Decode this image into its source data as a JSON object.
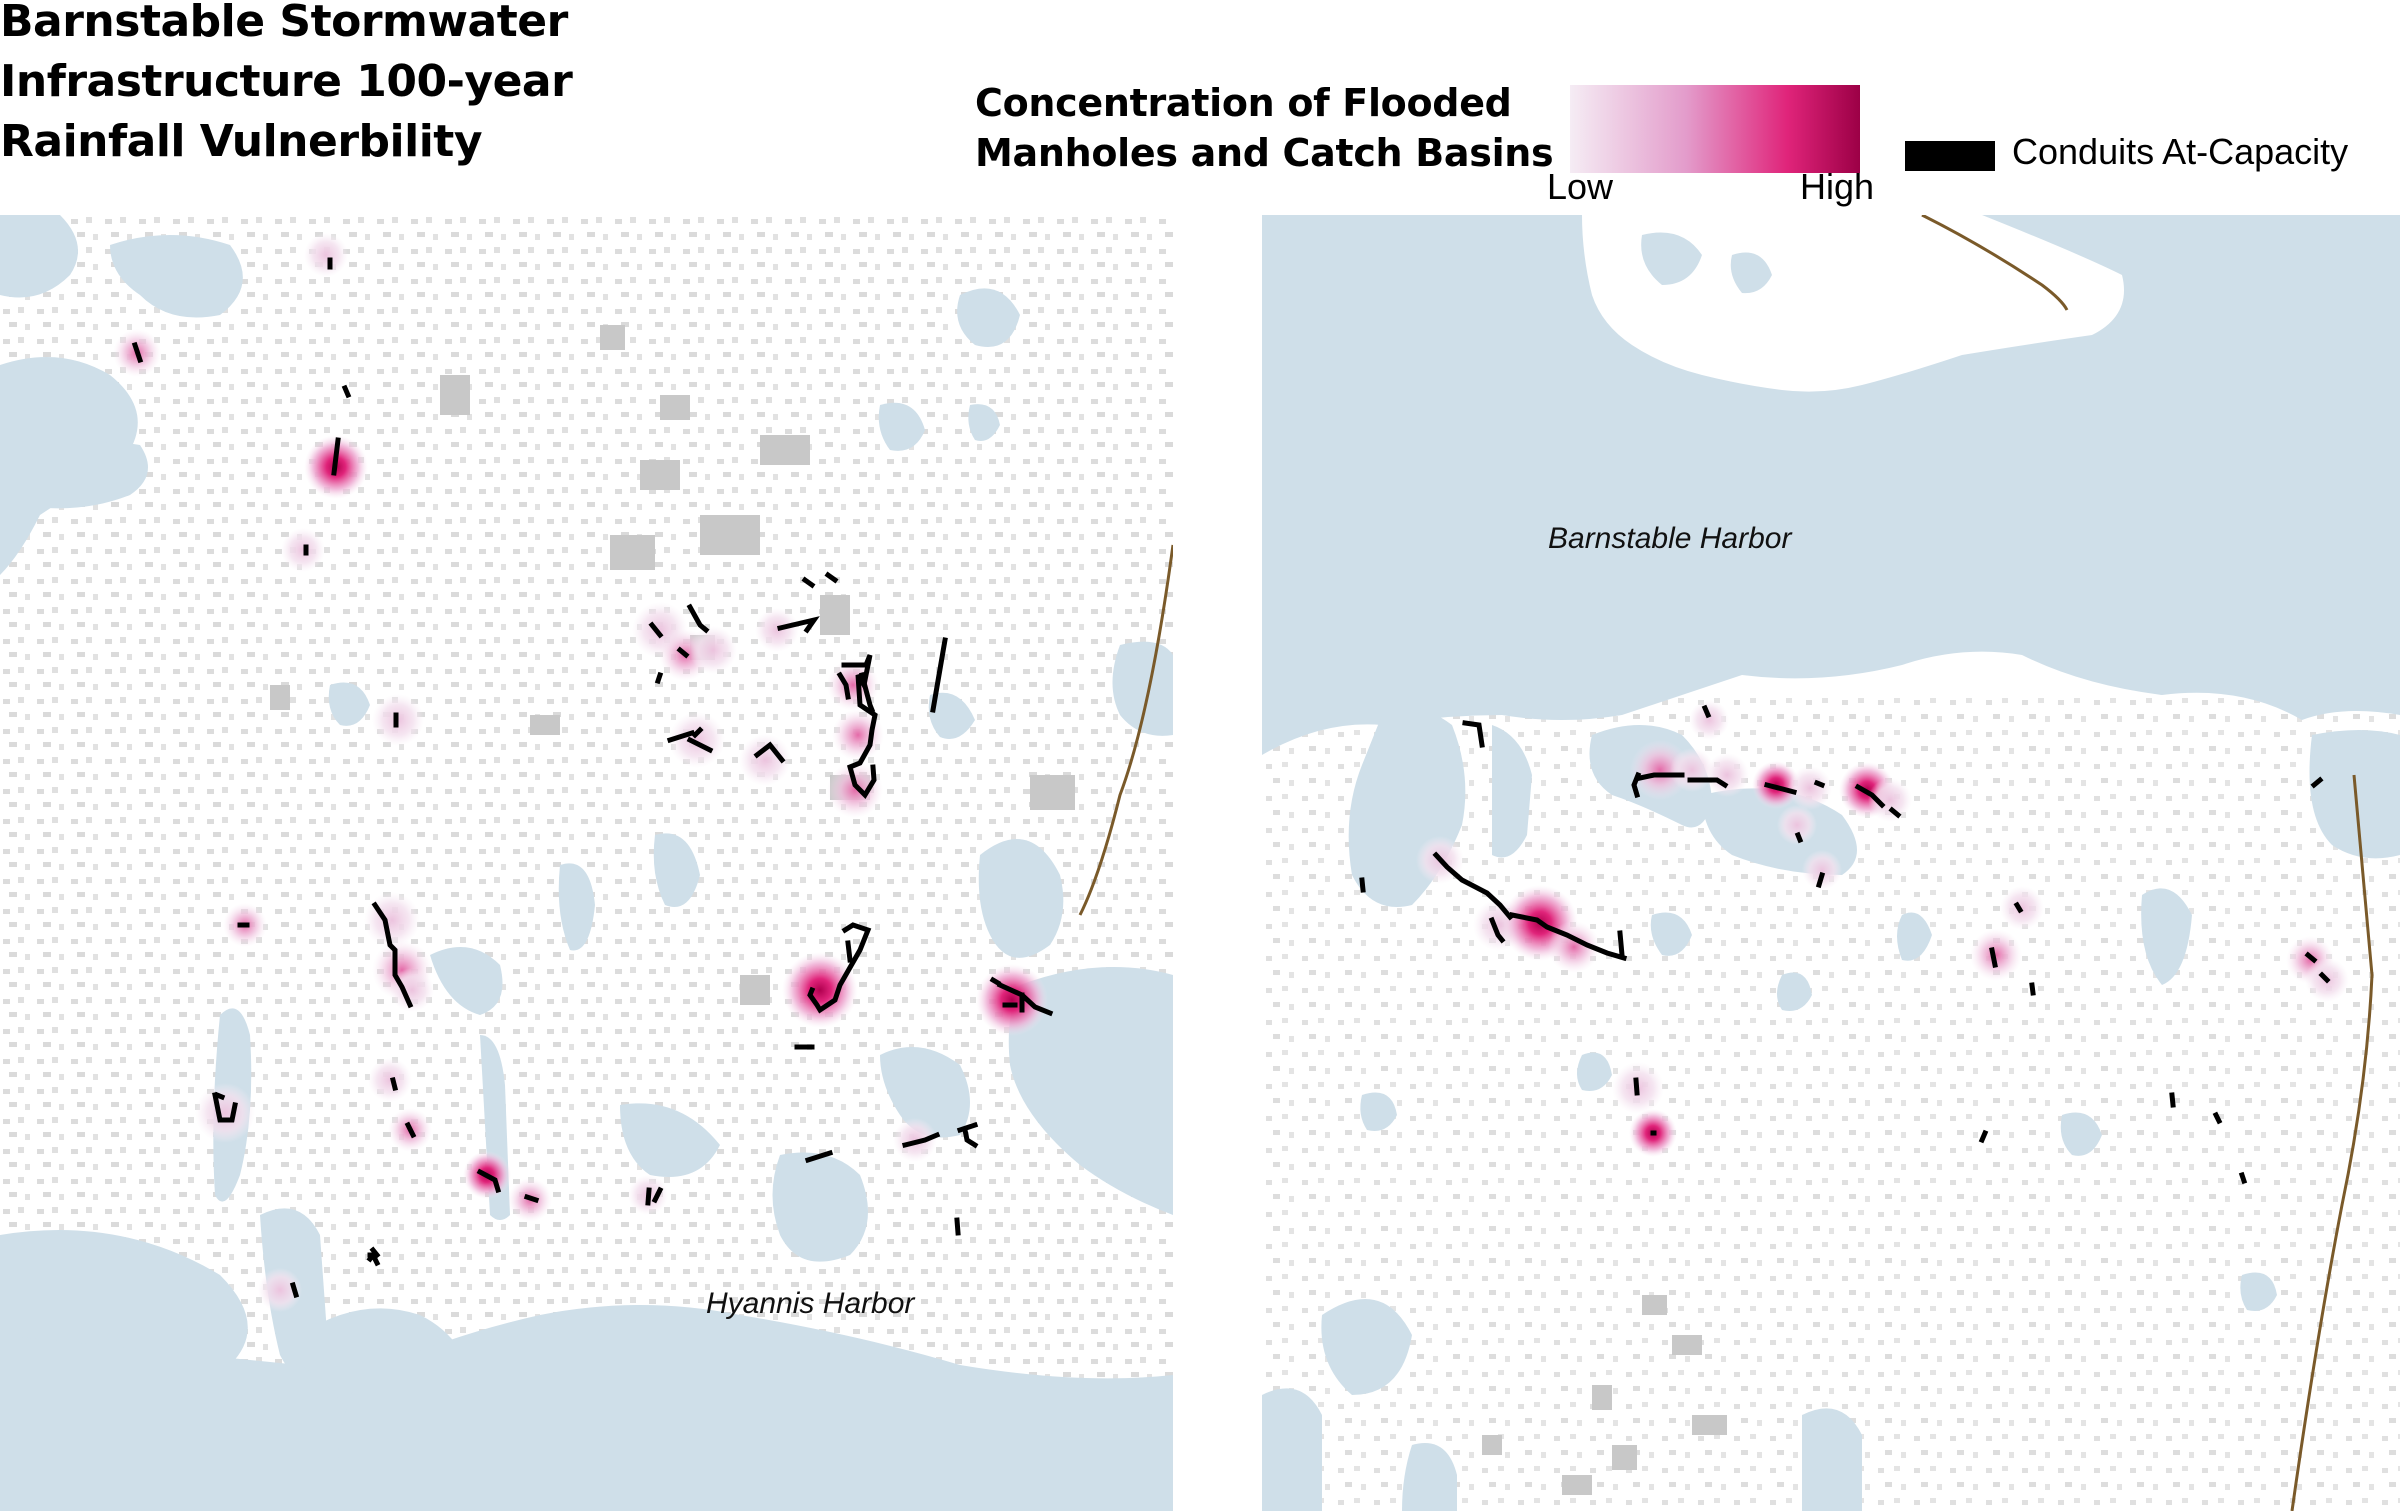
{
  "title": {
    "line1": "Barnstable Stormwater",
    "line2": "Infrastructure 100-year",
    "line3": "Rainfall Vulnerbility"
  },
  "legend": {
    "heat_label_line1": "Concentration of Flooded",
    "heat_label_line2": "Manholes and Catch Basins",
    "low": "Low",
    "high": "High",
    "conduits_label": "Conduits At-Capacity",
    "colors": {
      "gradient_low": "#f3e6f2",
      "gradient_mid": "#e07bbd",
      "gradient_high": "#e0247a",
      "gradient_max": "#9c0046",
      "conduit": "#000000",
      "water": "#cfdfe9",
      "land": "#ffffff",
      "buildings": "#c8c8c8",
      "boundary": "#7a5a2a"
    }
  },
  "maps": {
    "left": {
      "harbor_label": "Hyannis Harbor",
      "icons": [
        "flood-hotspot",
        "conduit-segment",
        "building-footprint",
        "water-body",
        "town-boundary"
      ]
    },
    "right": {
      "harbor_label": "Barnstable Harbor",
      "icons": [
        "flood-hotspot",
        "conduit-segment",
        "building-footprint",
        "water-body",
        "town-boundary"
      ]
    }
  }
}
